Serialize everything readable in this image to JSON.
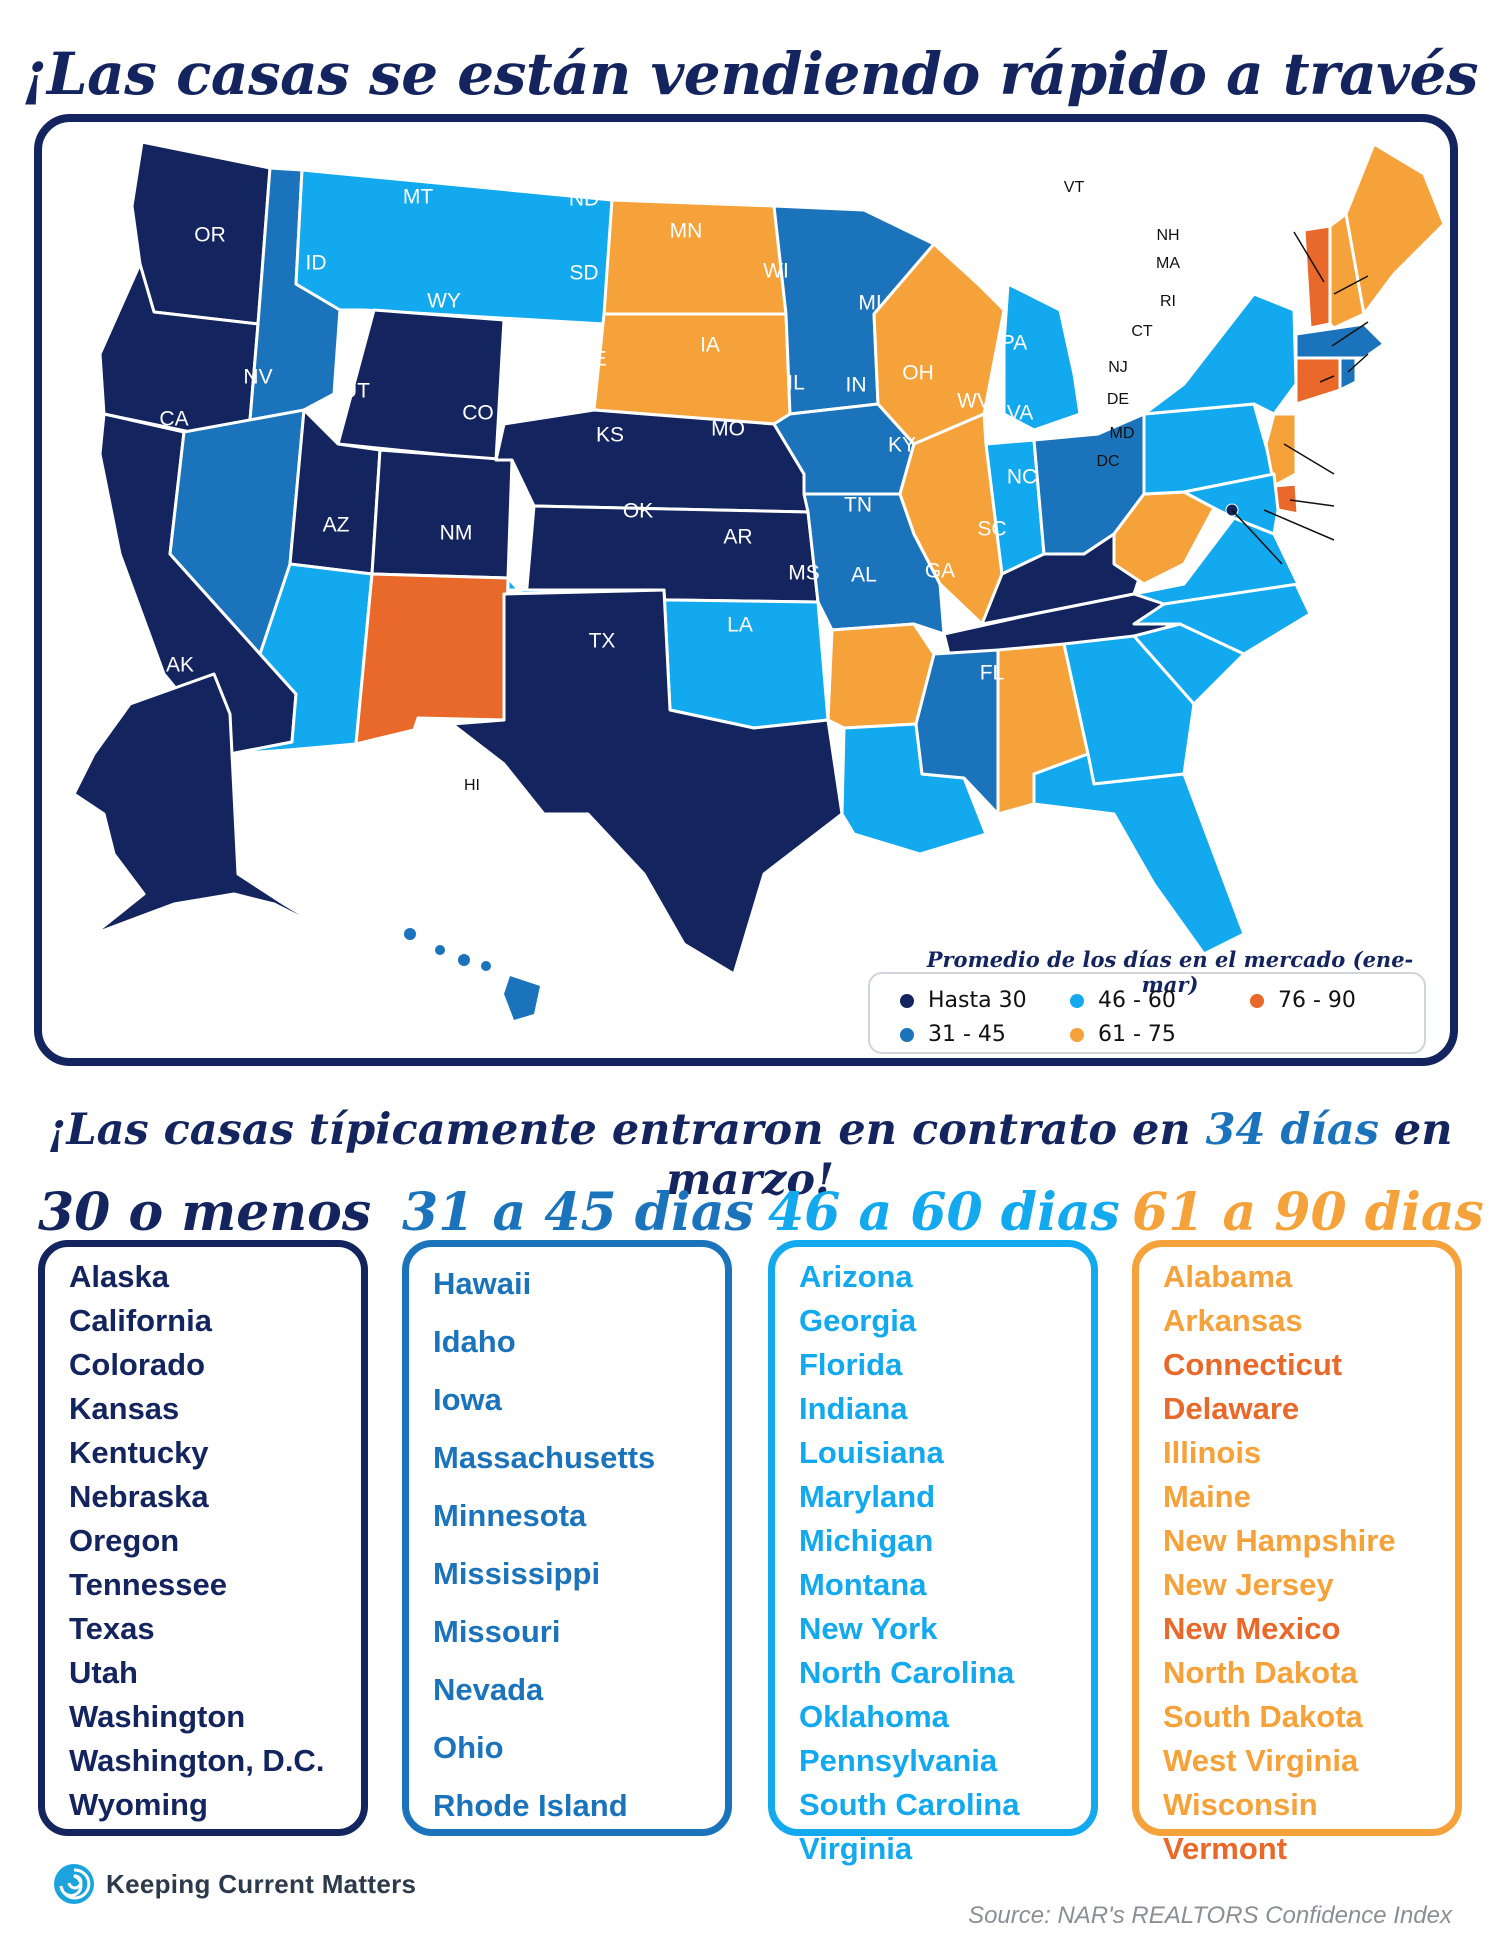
{
  "title": "¡Las casas se están vendiendo rápido a través del país!",
  "colors": {
    "navy": "#13245e",
    "medium_blue": "#1b74bb",
    "light_blue": "#12a9ee",
    "light_orange": "#f5a23a",
    "dark_orange": "#e8692a"
  },
  "map": {
    "states": [
      {
        "abbr": "WA",
        "category": "30"
      },
      {
        "abbr": "OR",
        "category": "30"
      },
      {
        "abbr": "CA",
        "category": "30"
      },
      {
        "abbr": "ID",
        "category": "31-45"
      },
      {
        "abbr": "NV",
        "category": "31-45"
      },
      {
        "abbr": "MT",
        "category": "46-60"
      },
      {
        "abbr": "WY",
        "category": "30"
      },
      {
        "abbr": "UT",
        "category": "30"
      },
      {
        "abbr": "AZ",
        "category": "46-60"
      },
      {
        "abbr": "CO",
        "category": "30"
      },
      {
        "abbr": "NM",
        "category": "76-90"
      },
      {
        "abbr": "ND",
        "category": "61-75"
      },
      {
        "abbr": "SD",
        "category": "61-75"
      },
      {
        "abbr": "NE",
        "category": "30"
      },
      {
        "abbr": "KS",
        "category": "30"
      },
      {
        "abbr": "OK",
        "category": "46-60"
      },
      {
        "abbr": "TX",
        "category": "30"
      },
      {
        "abbr": "MN",
        "category": "31-45"
      },
      {
        "abbr": "IA",
        "category": "31-45"
      },
      {
        "abbr": "MO",
        "category": "31-45"
      },
      {
        "abbr": "AR",
        "category": "61-75"
      },
      {
        "abbr": "LA",
        "category": "46-60"
      },
      {
        "abbr": "WI",
        "category": "61-75"
      },
      {
        "abbr": "IL",
        "category": "61-75"
      },
      {
        "abbr": "MI",
        "category": "46-60"
      },
      {
        "abbr": "IN",
        "category": "46-60"
      },
      {
        "abbr": "OH",
        "category": "31-45"
      },
      {
        "abbr": "KY",
        "category": "30"
      },
      {
        "abbr": "TN",
        "category": "30"
      },
      {
        "abbr": "MS",
        "category": "31-45"
      },
      {
        "abbr": "AL",
        "category": "61-75"
      },
      {
        "abbr": "GA",
        "category": "46-60"
      },
      {
        "abbr": "FL",
        "category": "46-60"
      },
      {
        "abbr": "SC",
        "category": "46-60"
      },
      {
        "abbr": "NC",
        "category": "46-60"
      },
      {
        "abbr": "VA",
        "category": "46-60"
      },
      {
        "abbr": "WV",
        "category": "61-75"
      },
      {
        "abbr": "PA",
        "category": "46-60"
      },
      {
        "abbr": "NY",
        "category": "46-60"
      },
      {
        "abbr": "ME",
        "category": "61-75"
      },
      {
        "abbr": "NH",
        "category": "61-75"
      },
      {
        "abbr": "VT",
        "category": "76-90"
      },
      {
        "abbr": "MA",
        "category": "31-45"
      },
      {
        "abbr": "RI",
        "category": "31-45"
      },
      {
        "abbr": "CT",
        "category": "76-90"
      },
      {
        "abbr": "NJ",
        "category": "61-75"
      },
      {
        "abbr": "DE",
        "category": "76-90"
      },
      {
        "abbr": "MD",
        "category": "46-60"
      },
      {
        "abbr": "DC",
        "category": "30"
      },
      {
        "abbr": "AK",
        "category": "30"
      },
      {
        "abbr": "HI",
        "category": "31-45"
      }
    ]
  },
  "legend": {
    "title": "Promedio de los días en el mercado (ene-mar)",
    "items": [
      {
        "label": "Hasta 30",
        "color": "#13245e"
      },
      {
        "label": "46 - 60",
        "color": "#12a9ee"
      },
      {
        "label": "76 - 90",
        "color": "#e8692a"
      },
      {
        "label": "31 - 45",
        "color": "#1b74bb"
      },
      {
        "label": "61 - 75",
        "color": "#f5a23a"
      }
    ]
  },
  "subtitle": {
    "before": "¡Las casas típicamente entraron en contrato en ",
    "highlight": "34 días",
    "after": " en marzo!"
  },
  "columns": [
    {
      "heading": "30 o menos",
      "color": "#13245e",
      "items": [
        "Alaska",
        "California",
        "Colorado",
        "Kansas",
        "Kentucky",
        "Nebraska",
        "Oregon",
        "Tennessee",
        "Texas",
        "Utah",
        "Washington",
        "Washington, D.C.",
        "Wyoming"
      ]
    },
    {
      "heading": "31 a 45 dias",
      "color": "#1b74bb",
      "items": [
        "Hawaii",
        "Idaho",
        "Iowa",
        "Massachusetts",
        "Minnesota",
        "Mississippi",
        "Missouri",
        "Nevada",
        "Ohio",
        "Rhode Island"
      ]
    },
    {
      "heading": "46 a 60 dias",
      "color": "#12a9ee",
      "items": [
        "Arizona",
        "Georgia",
        "Florida",
        "Indiana",
        "Louisiana",
        "Maryland",
        "Michigan",
        "Montana",
        "New York",
        "North Carolina",
        "Oklahoma",
        "Pennsylvania",
        "South Carolina",
        "Virginia"
      ]
    },
    {
      "heading": "61 a 90 dias",
      "color": "#f5a23a",
      "items": [
        {
          "name": "Alabama",
          "color": "#f5a23a"
        },
        {
          "name": "Arkansas",
          "color": "#f5a23a"
        },
        {
          "name": "Connecticut",
          "color": "#e8692a"
        },
        {
          "name": "Delaware",
          "color": "#e8692a"
        },
        {
          "name": "Illinois",
          "color": "#f5a23a"
        },
        {
          "name": "Maine",
          "color": "#f5a23a"
        },
        {
          "name": "New Hampshire",
          "color": "#f5a23a"
        },
        {
          "name": "New Jersey",
          "color": "#f5a23a"
        },
        {
          "name": "New Mexico",
          "color": "#e8692a"
        },
        {
          "name": "North Dakota",
          "color": "#f5a23a"
        },
        {
          "name": "South Dakota",
          "color": "#f5a23a"
        },
        {
          "name": "West Virginia",
          "color": "#f5a23a"
        },
        {
          "name": "Wisconsin",
          "color": "#f5a23a"
        },
        {
          "name": "Vermont",
          "color": "#e8692a"
        }
      ]
    }
  ],
  "footer": {
    "brand": "Keeping Current Matters",
    "brand_icon": "swirl-logo-icon",
    "source": "Source: NAR's REALTORS Confidence Index"
  }
}
